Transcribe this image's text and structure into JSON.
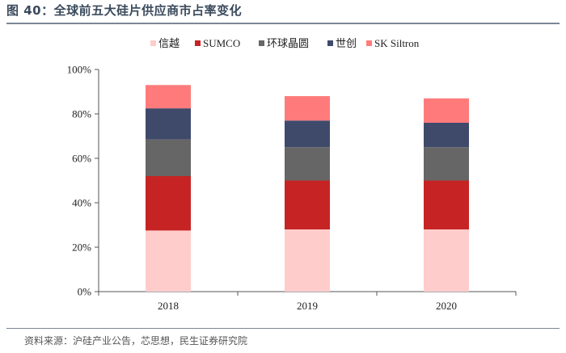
{
  "figure": {
    "title": "图 40：全球前五大硅片供应商市占率变化",
    "source": "资料来源：沪硅产业公告，芯思想，民生证券研究院"
  },
  "chart_data": {
    "type": "bar",
    "stacked": true,
    "title": "",
    "xlabel": "",
    "ylabel": "",
    "categories": [
      "2018",
      "2019",
      "2020"
    ],
    "ylim": [
      0,
      100
    ],
    "yticks": [
      0,
      20,
      40,
      60,
      80,
      100
    ],
    "ytick_format": "percent",
    "grid": false,
    "legend_position": "top",
    "series": [
      {
        "name": "信越",
        "color": "#ffcccc",
        "values": [
          27.5,
          28,
          28
        ]
      },
      {
        "name": "SUMCO",
        "color": "#c62424",
        "values": [
          24.5,
          22,
          22
        ]
      },
      {
        "name": "环球晶圆",
        "color": "#666666",
        "values": [
          16.5,
          15,
          15
        ]
      },
      {
        "name": "世创",
        "color": "#3f4a6b",
        "values": [
          14,
          12,
          11
        ]
      },
      {
        "name": "SK Siltron",
        "color": "#ff7b7b",
        "values": [
          10.5,
          11,
          11
        ]
      }
    ]
  }
}
